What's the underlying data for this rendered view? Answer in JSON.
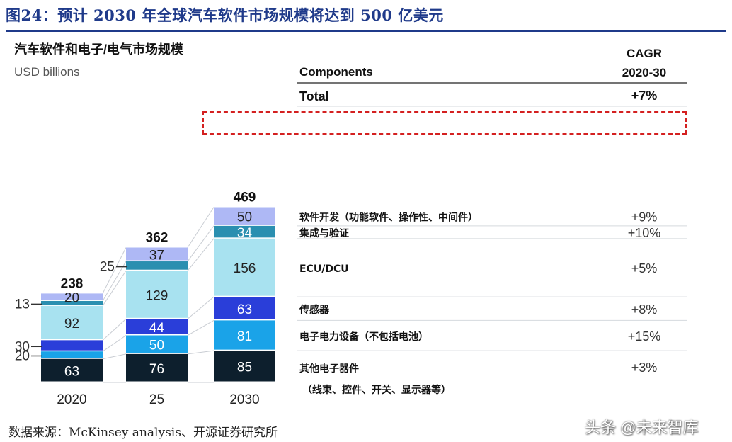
{
  "figure_title": "图24：预计 2030 年全球汽车软件市场规模将达到 500 亿美元",
  "source": "数据来源：McKinsey analysis、开源证券研究所",
  "watermark": "头条 @未来智库",
  "colors": {
    "title_blue": "#1f3a8a",
    "highlight_red": "#d42020"
  },
  "chart_data": {
    "type": "bar",
    "stacked": true,
    "title": "汽车软件和电子/电气市场规模",
    "ylabel": "USD billions",
    "categories": [
      "2020",
      "25",
      "2030"
    ],
    "totals": [
      238,
      362,
      469
    ],
    "series": [
      {
        "name": "其他电子器件",
        "values": [
          63,
          76,
          85
        ],
        "color": "#0d1f2d",
        "cagr": "+3%",
        "sub": "（线束、控件、开关、显示器等）"
      },
      {
        "name": "电子电力设备（不包括电池）",
        "values": [
          20,
          50,
          81
        ],
        "color": "#1aa3e8",
        "cagr": "+15%",
        "sub": ""
      },
      {
        "name": "传感器",
        "values": [
          30,
          44,
          63
        ],
        "color": "#2a3ed9",
        "cagr": "+8%",
        "sub": ""
      },
      {
        "name": "ECU/DCU",
        "values": [
          92,
          129,
          156
        ],
        "color": "#a8e2f0",
        "cagr": "+5%",
        "sub": ""
      },
      {
        "name": "集成与验证",
        "values": [
          13,
          25,
          34
        ],
        "color": "#2a8fb0",
        "cagr": "+10%",
        "sub": ""
      },
      {
        "name": "软件开发（功能软件、操作性、中间件）",
        "values": [
          20,
          37,
          50
        ],
        "color": "#aeb8f5",
        "cagr": "+9%",
        "sub": ""
      }
    ],
    "table": {
      "components_label": "Components",
      "cagr_label": "CAGR",
      "cagr_period": "2020-30",
      "total_label": "Total",
      "total_cagr": "+7%"
    }
  }
}
